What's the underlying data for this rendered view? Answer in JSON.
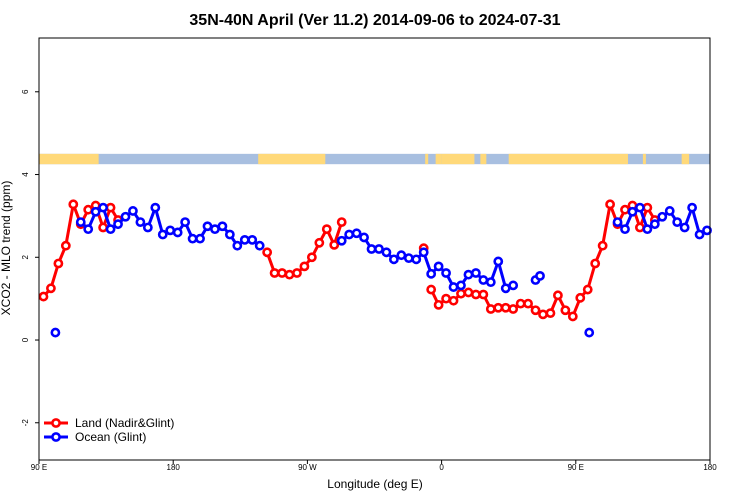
{
  "chart_data": {
    "type": "line",
    "title": "35N-40N April (Ver 11.2)   2014-09-06 to 2024-07-31",
    "xlabel": "Longitude (deg E)",
    "ylabel": "XCO2 - MLO trend (ppm)",
    "x_ticks": [
      {
        "value": 90,
        "label": "90 E"
      },
      {
        "value": 180,
        "label": "180"
      },
      {
        "value": 270,
        "label": "90 W"
      },
      {
        "value": 360,
        "label": "0"
      },
      {
        "value": 450,
        "label": "90 E"
      },
      {
        "value": 540,
        "label": "180"
      }
    ],
    "y_ticks": [
      {
        "value": -2,
        "label": "-2"
      },
      {
        "value": 0,
        "label": "0"
      },
      {
        "value": 2,
        "label": "2"
      },
      {
        "value": 4,
        "label": "4"
      },
      {
        "value": 6,
        "label": "6"
      }
    ],
    "xlim": [
      90,
      540
    ],
    "ylim": [
      -2.9,
      7.3
    ],
    "land_ocean_strip": {
      "y_range": [
        4.25,
        4.5
      ],
      "land_color": "#FFD97A",
      "ocean_color": "#A8BFE0",
      "land_segments": [
        [
          90,
          130
        ],
        [
          237,
          282
        ],
        [
          349,
          351
        ],
        [
          356,
          360
        ],
        [
          360,
          382
        ],
        [
          386,
          390
        ],
        [
          405,
          485
        ],
        [
          495,
          497
        ],
        [
          521,
          526
        ]
      ]
    },
    "legend": {
      "position": "bottom-left",
      "entries": [
        {
          "label": "Land (Nadir&Glint)",
          "color": "#FF0000"
        },
        {
          "label": "Ocean (Glint)",
          "color": "#0000FF"
        }
      ]
    },
    "series": [
      {
        "name": "Land (Nadir&Glint)",
        "color": "#FF0000",
        "segments": [
          [
            [
              93,
              1.05
            ],
            [
              98,
              1.25
            ],
            [
              103,
              1.85
            ],
            [
              108,
              2.28
            ],
            [
              113,
              3.28
            ],
            [
              118,
              2.8
            ],
            [
              123,
              3.15
            ],
            [
              128,
              3.25
            ],
            [
              133,
              2.72
            ],
            [
              138,
              3.2
            ],
            [
              143,
              2.9
            ]
          ],
          [
            [
              243,
              2.12
            ],
            [
              248,
              1.62
            ],
            [
              253,
              1.62
            ],
            [
              258,
              1.58
            ],
            [
              263,
              1.62
            ],
            [
              268,
              1.78
            ],
            [
              273,
              2.0
            ],
            [
              278,
              2.35
            ],
            [
              283,
              2.68
            ],
            [
              288,
              2.3
            ],
            [
              293,
              2.85
            ]
          ],
          [
            [
              348,
              2.22
            ]
          ],
          [
            [
              353,
              1.22
            ],
            [
              358,
              0.85
            ],
            [
              363,
              1.0
            ],
            [
              368,
              0.95
            ],
            [
              373,
              1.12
            ],
            [
              378,
              1.15
            ],
            [
              383,
              1.1
            ],
            [
              388,
              1.1
            ],
            [
              393,
              0.75
            ],
            [
              398,
              0.78
            ],
            [
              403,
              0.78
            ],
            [
              408,
              0.75
            ],
            [
              413,
              0.88
            ],
            [
              418,
              0.88
            ],
            [
              423,
              0.72
            ],
            [
              428,
              0.62
            ],
            [
              433,
              0.65
            ],
            [
              438,
              1.08
            ],
            [
              443,
              0.72
            ],
            [
              448,
              0.57
            ],
            [
              453,
              1.02
            ],
            [
              458,
              1.22
            ],
            [
              463,
              1.85
            ],
            [
              468,
              2.28
            ],
            [
              473,
              3.28
            ],
            [
              478,
              2.8
            ],
            [
              483,
              3.15
            ],
            [
              488,
              3.25
            ],
            [
              493,
              2.72
            ],
            [
              498,
              3.2
            ],
            [
              503,
              2.9
            ]
          ]
        ]
      },
      {
        "name": "Ocean (Glint)",
        "color": "#0000FF",
        "segments": [
          [
            [
              101,
              0.18
            ]
          ],
          [
            [
              118,
              2.85
            ],
            [
              123,
              2.68
            ],
            [
              128,
              3.1
            ],
            [
              133,
              3.2
            ],
            [
              138,
              2.68
            ],
            [
              143,
              2.8
            ],
            [
              148,
              2.98
            ],
            [
              153,
              3.12
            ],
            [
              158,
              2.85
            ],
            [
              163,
              2.72
            ],
            [
              168,
              3.2
            ],
            [
              173,
              2.55
            ],
            [
              178,
              2.65
            ],
            [
              183,
              2.6
            ],
            [
              188,
              2.85
            ],
            [
              193,
              2.45
            ],
            [
              198,
              2.45
            ],
            [
              203,
              2.75
            ],
            [
              208,
              2.68
            ],
            [
              213,
              2.75
            ],
            [
              218,
              2.55
            ],
            [
              223,
              2.28
            ],
            [
              228,
              2.42
            ],
            [
              233,
              2.42
            ],
            [
              238,
              2.28
            ]
          ],
          [
            [
              293,
              2.4
            ],
            [
              298,
              2.55
            ],
            [
              303,
              2.58
            ],
            [
              308,
              2.48
            ],
            [
              313,
              2.2
            ],
            [
              318,
              2.2
            ],
            [
              323,
              2.12
            ],
            [
              328,
              1.95
            ],
            [
              333,
              2.05
            ],
            [
              338,
              1.98
            ],
            [
              343,
              1.95
            ],
            [
              348,
              2.12
            ],
            [
              353,
              1.6
            ],
            [
              358,
              1.78
            ],
            [
              363,
              1.62
            ],
            [
              368,
              1.28
            ],
            [
              373,
              1.32
            ],
            [
              378,
              1.58
            ],
            [
              383,
              1.62
            ],
            [
              388,
              1.45
            ],
            [
              393,
              1.4
            ],
            [
              398,
              1.9
            ],
            [
              403,
              1.25
            ],
            [
              408,
              1.32
            ]
          ],
          [
            [
              423,
              1.45
            ],
            [
              426,
              1.55
            ]
          ],
          [
            [
              459,
              0.18
            ]
          ],
          [
            [
              478,
              2.85
            ],
            [
              483,
              2.68
            ],
            [
              488,
              3.1
            ],
            [
              493,
              3.2
            ],
            [
              498,
              2.68
            ],
            [
              503,
              2.8
            ],
            [
              508,
              2.98
            ],
            [
              513,
              3.12
            ],
            [
              518,
              2.85
            ],
            [
              523,
              2.72
            ],
            [
              528,
              3.2
            ],
            [
              533,
              2.55
            ],
            [
              538,
              2.65
            ]
          ]
        ]
      }
    ]
  }
}
